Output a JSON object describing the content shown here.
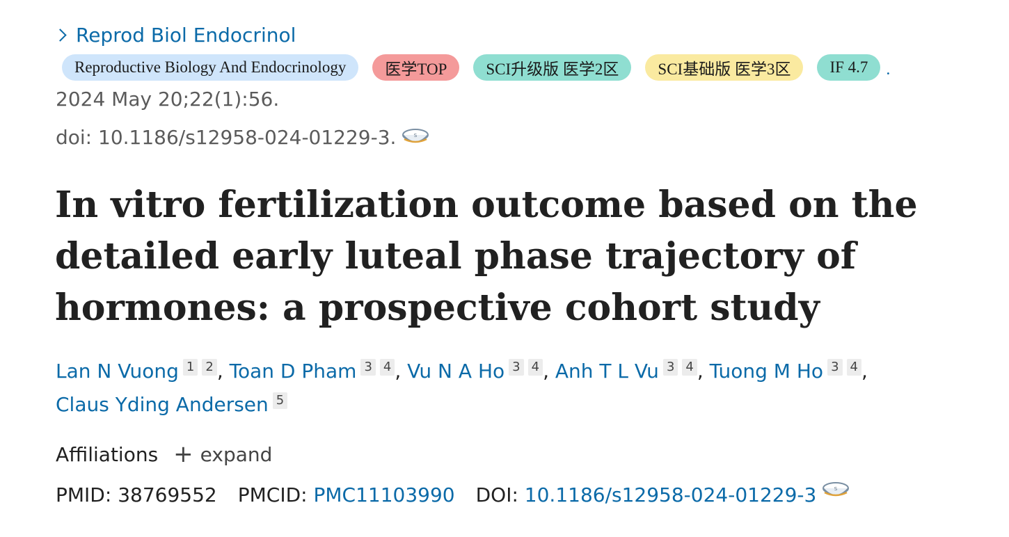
{
  "journal": {
    "link_text": "Reprod Biol Endocrinol"
  },
  "badges": [
    {
      "label": "Reproductive Biology And Endocrinology"
    },
    {
      "label": "医学TOP"
    },
    {
      "label": "SCI升级版 医学2区"
    },
    {
      "label": "SCI基础版 医学3区"
    },
    {
      "label": "IF 4.7"
    }
  ],
  "badge_trail": ".",
  "colors": {
    "link": "#0b6aa8",
    "badge_journal": "#cfe5fb",
    "badge_top": "#f49a9a",
    "badge_sci2": "#8fded1",
    "badge_sci3": "#faeaa0",
    "badge_if": "#8fded1"
  },
  "citation": {
    "date": "2024 May 20;22(1):56.",
    "doi": "doi: 10.1186/s12958-024-01229-3."
  },
  "title": "In vitro fertilization outcome based on the detailed early luteal phase trajectory of hormones: a prospective cohort study",
  "authors": [
    {
      "name": "Lan N Vuong",
      "affs": [
        "1",
        "2"
      ]
    },
    {
      "name": "Toan D Pham",
      "affs": [
        "3",
        "4"
      ]
    },
    {
      "name": "Vu N A Ho",
      "affs": [
        "3",
        "4"
      ]
    },
    {
      "name": "Anh T L Vu",
      "affs": [
        "3",
        "4"
      ]
    },
    {
      "name": "Tuong M Ho",
      "affs": [
        "3",
        "4"
      ]
    },
    {
      "name": "Claus Yding Andersen",
      "affs": [
        "5"
      ]
    }
  ],
  "author_separator": ",",
  "affiliations": {
    "label": "Affiliations",
    "expand_label": "expand"
  },
  "ids": {
    "pmid_label": "PMID:",
    "pmid": "38769552",
    "pmcid_label": "PMCID:",
    "pmcid": "PMC11103990",
    "doi_label": "DOI:",
    "doi": "10.1186/s12958-024-01229-3"
  },
  "icons": {
    "scihub": "scihub-bowl-icon",
    "chevron": "chevron-right-icon",
    "plus": "plus-icon"
  }
}
